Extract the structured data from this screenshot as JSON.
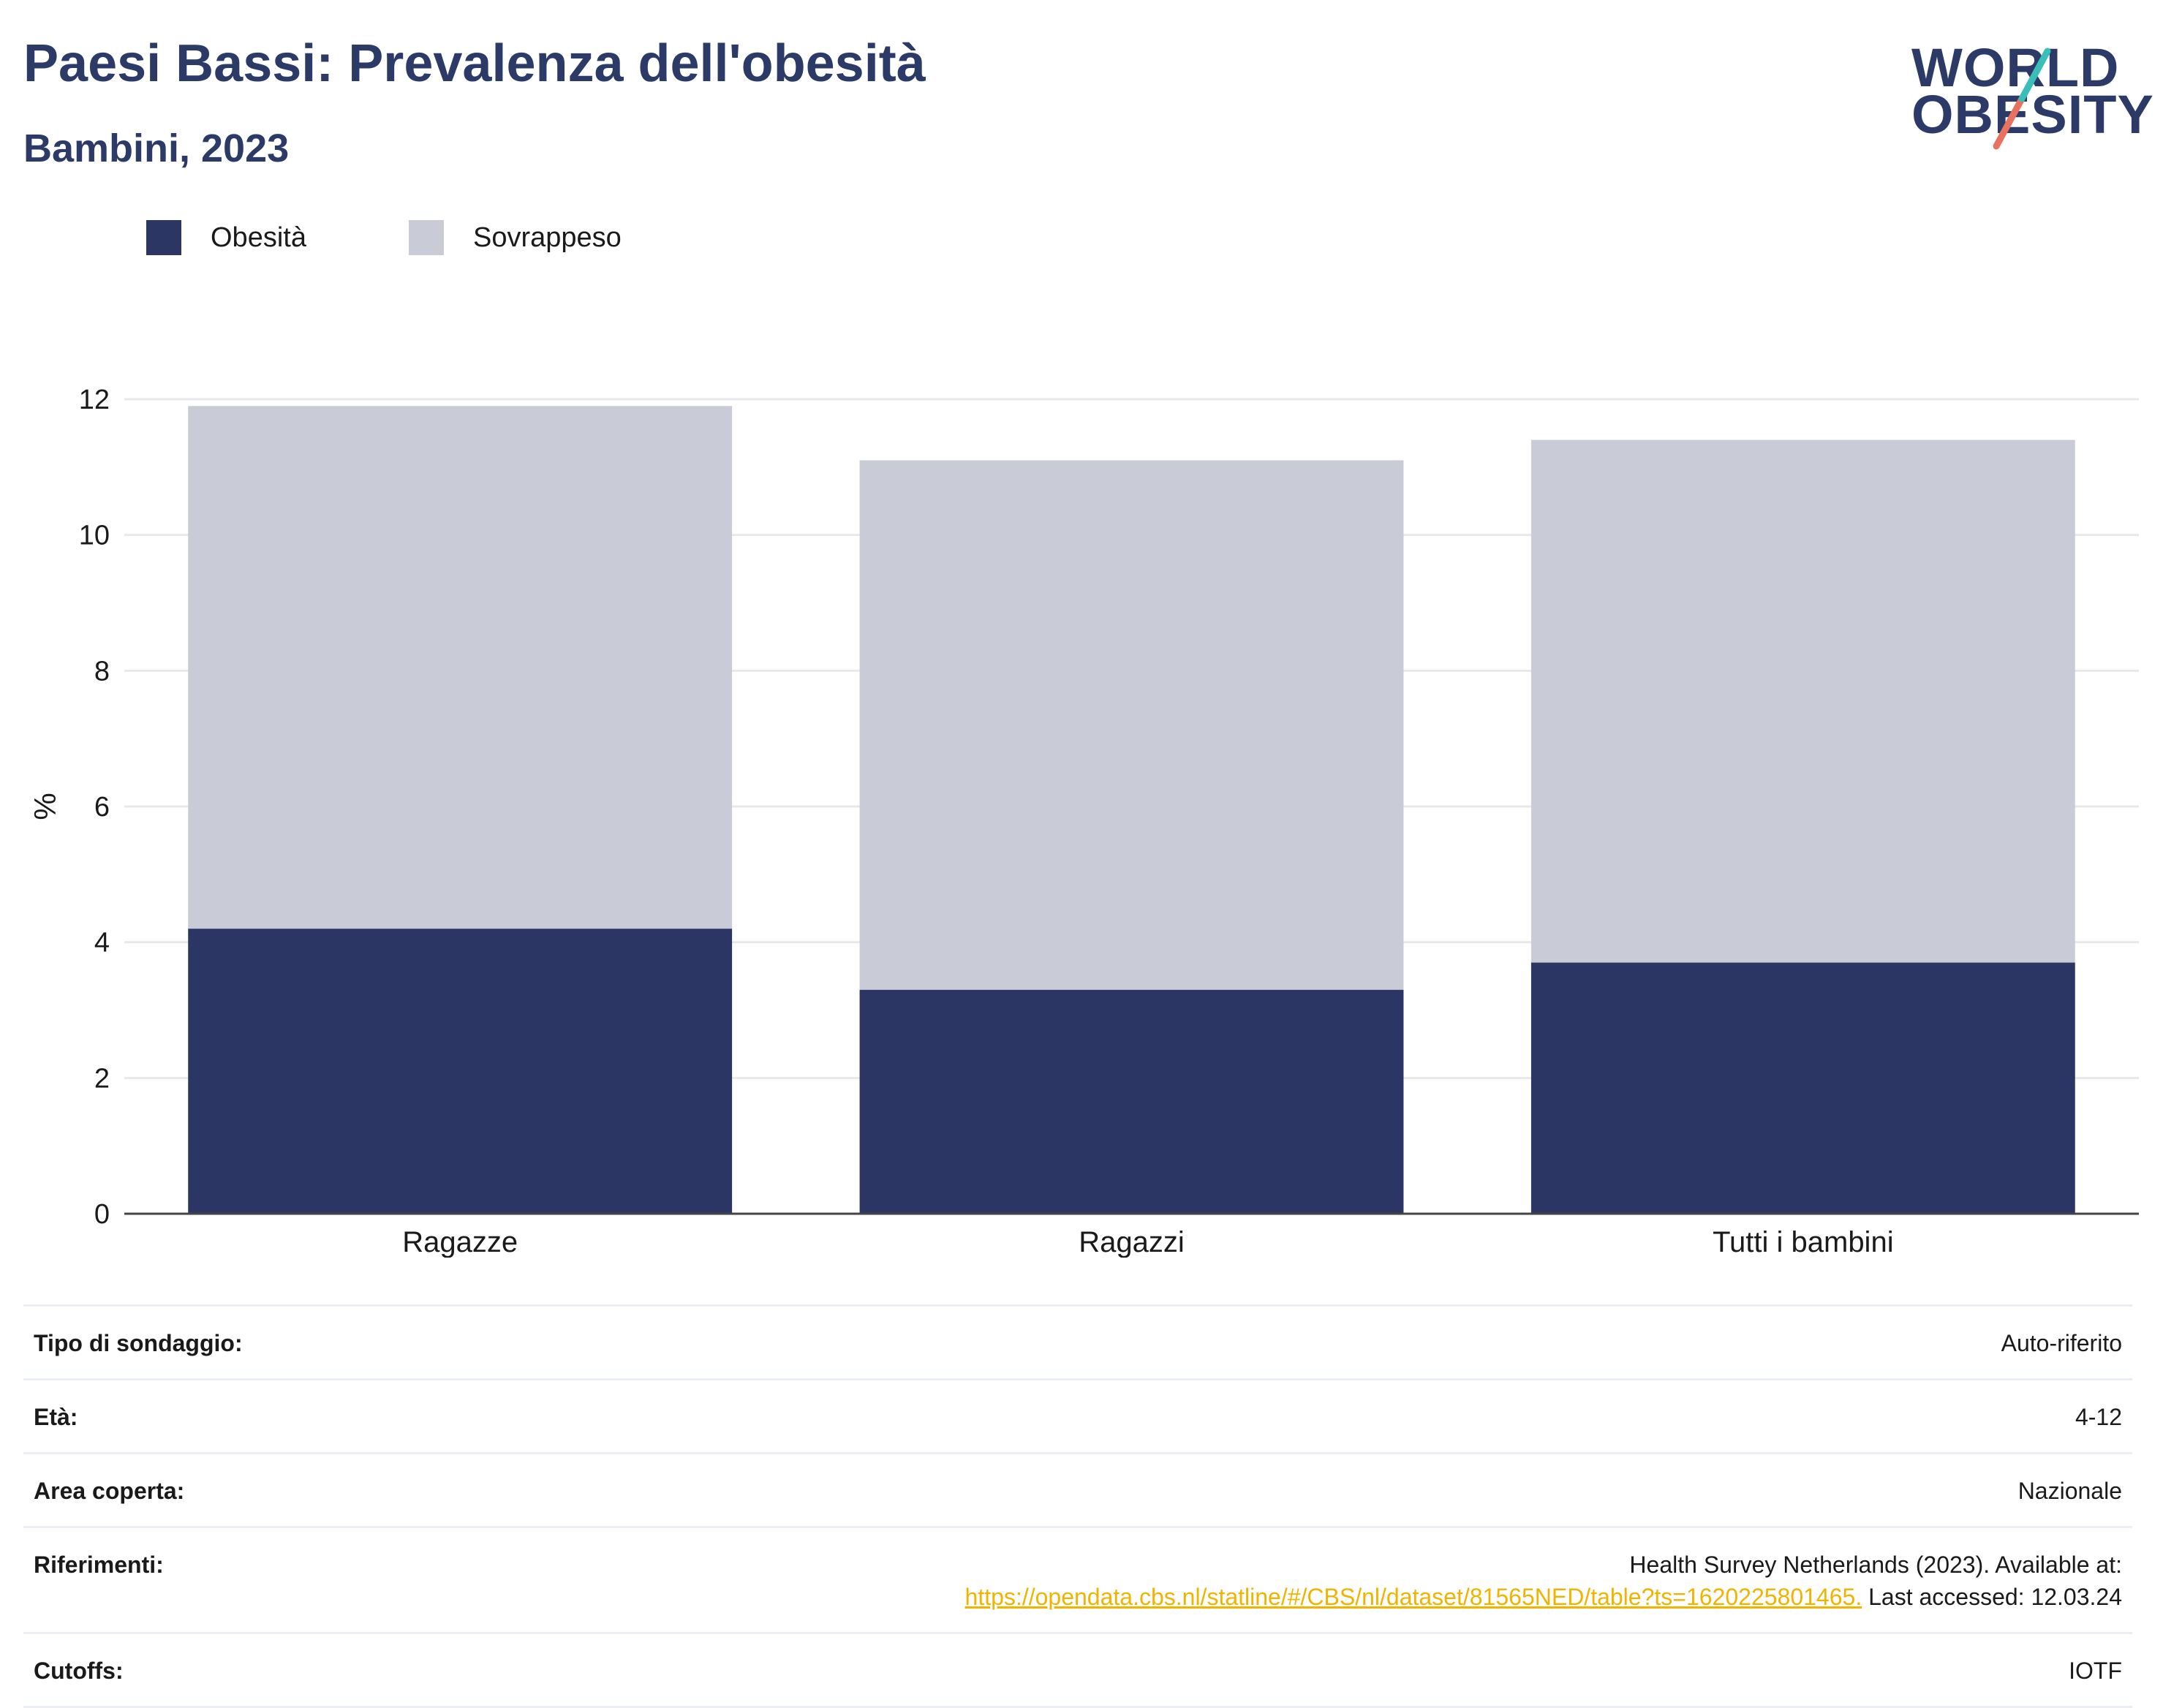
{
  "header": {
    "title": "Paesi Bassi: Prevalenza dell'obesità",
    "subtitle": "Bambini, 2023"
  },
  "logo": {
    "line1": "WORLD",
    "line2": "OBESITY"
  },
  "colors": {
    "obesity": "#2b3664",
    "overweight": "#c9cbd6",
    "brand_navy": "#2b3a67",
    "brand_teal": "#39bfb8",
    "brand_coral": "#e8715f",
    "link": "#f0b400"
  },
  "chart_data": {
    "type": "bar",
    "stacked": true,
    "categories": [
      "Ragazze",
      "Ragazzi",
      "Tutti i bambini"
    ],
    "series": [
      {
        "name": "Obesità",
        "values": [
          4.2,
          3.3,
          3.7
        ]
      },
      {
        "name": "Sovrappeso",
        "values": [
          7.7,
          7.8,
          7.7
        ]
      }
    ],
    "ylabel": "%",
    "yticks": [
      0,
      2,
      4,
      6,
      8,
      10,
      12
    ],
    "ylim": [
      0,
      12
    ],
    "grid": true,
    "legend_position": "top-left"
  },
  "meta": {
    "rows": [
      {
        "key": "Tipo di sondaggio:",
        "value": "Auto-riferito"
      },
      {
        "key": "Età:",
        "value": "4-12"
      },
      {
        "key": "Area coperta:",
        "value": "Nazionale"
      },
      {
        "key": "Riferimenti:",
        "value_line1": "Health Survey Netherlands (2023). Available at:",
        "link": "https://opendata.cbs.nl/statline/#/CBS/nl/dataset/81565NED/table?ts=1620225801465.",
        "value_suffix": " Last accessed: 12.03.24"
      },
      {
        "key": "Cutoffs:",
        "value": "IOTF"
      }
    ]
  }
}
